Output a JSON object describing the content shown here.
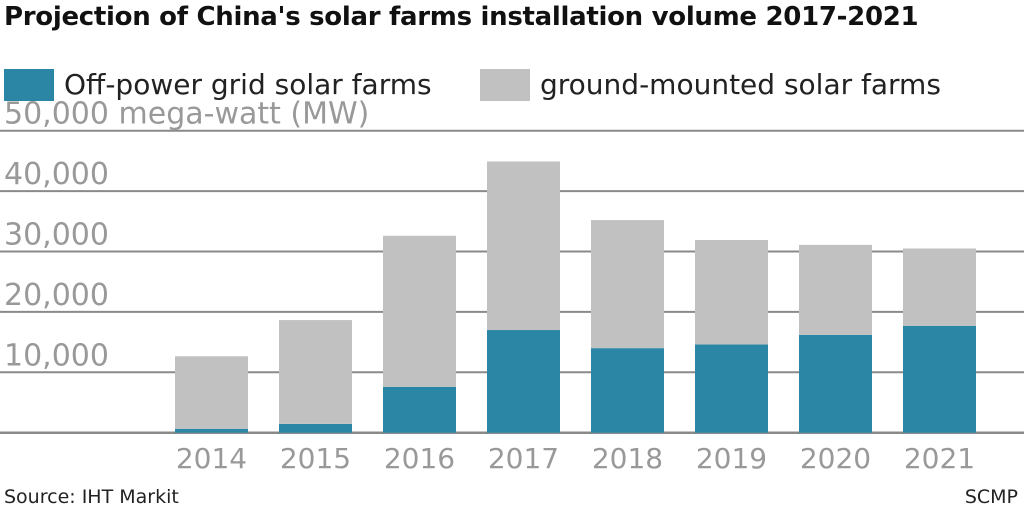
{
  "chart_data": {
    "type": "bar",
    "stacked": true,
    "title": "Projection of China's solar farms installation volume 2017-2021",
    "ylabel": "mega-watt (MW)",
    "xlabel": "",
    "ylim": [
      0,
      50000
    ],
    "yticks": [
      10000,
      20000,
      30000,
      40000,
      50000
    ],
    "ytick_labels": [
      "10,000",
      "20,000",
      "30,000",
      "40,000",
      "50,000"
    ],
    "grid": true,
    "legend_position": "top",
    "categories": [
      "2014",
      "2015",
      "2016",
      "2017",
      "2018",
      "2019",
      "2020",
      "2021"
    ],
    "series": [
      {
        "name": "Off-power grid solar farms",
        "color": "#2b86a6",
        "values": [
          650,
          1450,
          7600,
          17000,
          14000,
          14600,
          16200,
          17700
        ]
      },
      {
        "name": "ground-mounted solar farms",
        "color": "#c1c1c1",
        "values": [
          12000,
          17200,
          25000,
          27900,
          21200,
          17300,
          14900,
          12800
        ]
      }
    ],
    "source": "Source: IHT Markit",
    "credit": "SCMP"
  }
}
